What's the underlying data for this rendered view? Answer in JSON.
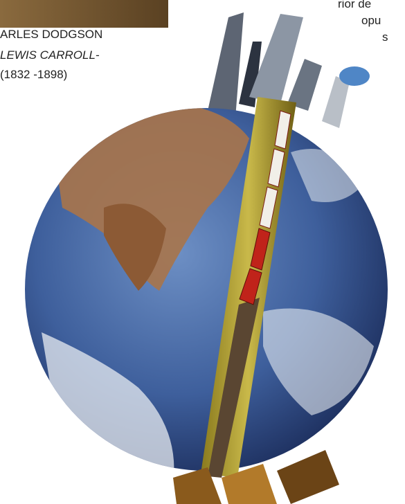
{
  "caption": {
    "name": "ARLES DODGSON",
    "pseudonym": "LEWIS CARROLL-",
    "dates": "(1832 -1898)"
  },
  "side_text": {
    "lines": [
      "rior de",
      "opu",
      "s"
    ]
  }
}
